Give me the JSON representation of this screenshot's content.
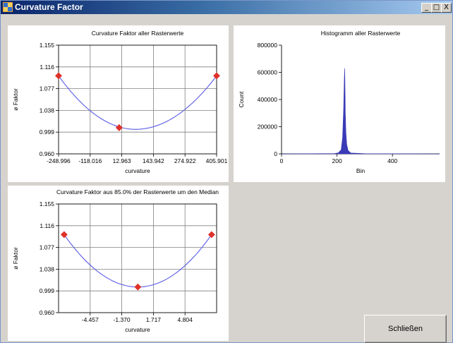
{
  "window": {
    "title": "Curvature Factor",
    "minimize_glyph": "_",
    "maximize_glyph": "□",
    "close_glyph": "X"
  },
  "close_button": {
    "label": "Schließen"
  },
  "chart_data": [
    {
      "id": "chart1",
      "type": "line",
      "title": "Curvature Faktor aller Rasterwerte",
      "xlabel": "curvature",
      "ylabel": "ø Faktor",
      "xticks": [
        "-248.996",
        "-118.016",
        "12.963",
        "143.942",
        "274.922",
        "405.901"
      ],
      "yticks": [
        "0.960",
        "0.999",
        "1.038",
        "1.077",
        "1.116",
        "1.155"
      ],
      "xlim": [
        -248.996,
        405.901
      ],
      "ylim": [
        0.96,
        1.155
      ],
      "grid": true,
      "points_x": [
        -248.996,
        2.0,
        405.901
      ],
      "points_y": [
        1.1,
        1.007,
        1.1
      ],
      "curve_min": [
        70.0,
        1.004
      ],
      "marker_color": "#e0302a",
      "line_color": "#5a5ae6"
    },
    {
      "id": "chart2",
      "type": "area",
      "title": "Histogramm aller Rasterwerte",
      "xlabel": "Bin",
      "ylabel": "Count",
      "xticks": [
        "0",
        "200",
        "400"
      ],
      "yticks": [
        "0",
        "200000",
        "400000",
        "600000",
        "800000"
      ],
      "xlim": [
        0,
        570
      ],
      "ylim": [
        0,
        800000
      ],
      "grid": false,
      "peak_x": 228,
      "peak_y": 630000,
      "fill_color": "#3a3ab6"
    },
    {
      "id": "chart3",
      "type": "line",
      "title": "Curvature Faktor aus 85.0% der Rasterwerte um den Median",
      "xlabel": "curvature",
      "ylabel": "ø Faktor",
      "xticks": [
        "-4.457",
        "-1.370",
        "1.717",
        "4.804"
      ],
      "yticks": [
        "0.960",
        "0.999",
        "1.038",
        "1.077",
        "1.116",
        "1.155"
      ],
      "xlim": [
        -7.544,
        7.891
      ],
      "ylim": [
        0.96,
        1.155
      ],
      "grid": true,
      "points_x": [
        -7.0,
        0.2,
        7.4
      ],
      "points_y": [
        1.1,
        1.006,
        1.1
      ],
      "curve_min": [
        0.2,
        1.006
      ],
      "marker_color": "#e0302a",
      "line_color": "#5a5ae6"
    }
  ]
}
